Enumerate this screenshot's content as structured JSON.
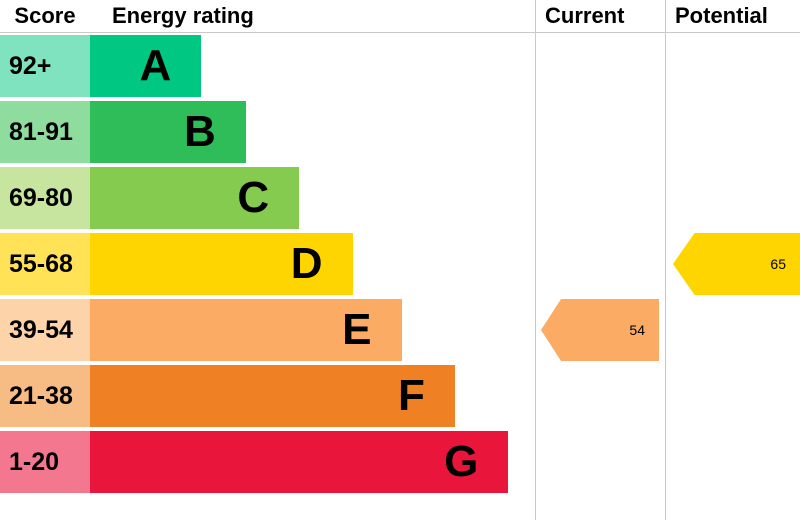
{
  "header": {
    "score_label": "Score",
    "rating_label": "Energy rating",
    "current_label": "Current",
    "potential_label": "Potential"
  },
  "chart_data": {
    "type": "bar",
    "subtype": "epc-energy-rating",
    "title": "Energy rating",
    "bands": [
      {
        "letter": "A",
        "score_range": "92+",
        "bar_color": "#00c781",
        "score_bg": "#80e3c0",
        "bar_width_pct": 25
      },
      {
        "letter": "B",
        "score_range": "81-91",
        "bar_color": "#2ebd59",
        "score_bg": "#8fdc9f",
        "bar_width_pct": 35
      },
      {
        "letter": "C",
        "score_range": "69-80",
        "bar_color": "#85cb4f",
        "score_bg": "#c7e59f",
        "bar_width_pct": 47
      },
      {
        "letter": "D",
        "score_range": "55-68",
        "bar_color": "#ffd500",
        "score_bg": "#ffe255",
        "bar_width_pct": 59
      },
      {
        "letter": "E",
        "score_range": "39-54",
        "bar_color": "#fbab64",
        "score_bg": "#fdd4a9",
        "bar_width_pct": 70
      },
      {
        "letter": "F",
        "score_range": "21-38",
        "bar_color": "#ef8023",
        "score_bg": "#f7bc84",
        "bar_width_pct": 82
      },
      {
        "letter": "G",
        "score_range": "1-20",
        "bar_color": "#e9153b",
        "score_bg": "#f2778f",
        "bar_width_pct": 94
      }
    ],
    "current": {
      "value": "54",
      "band": "E",
      "color": "#fbab64"
    },
    "potential": {
      "value": "65",
      "band": "D",
      "color": "#ffd500"
    }
  }
}
